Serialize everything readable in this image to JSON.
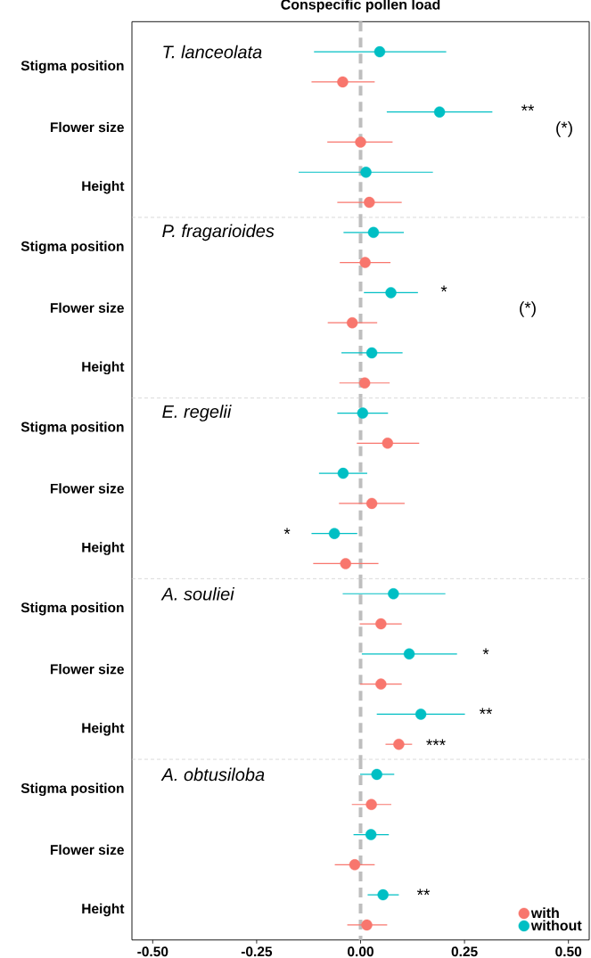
{
  "chart_data": [
    {
      "type": "scatter",
      "orientation": "horizontal",
      "title": "Conspecific pollen load",
      "categories": [
        "Stigma position",
        "Flower size",
        "Height"
      ],
      "series": [
        {
          "color": "#f8766d",
          "values": [
            -0.043,
            0.0,
            0.021
          ],
          "errors": [
            [
              -0.118,
              0.034
            ],
            [
              -0.08,
              0.077
            ],
            [
              -0.056,
              0.099
            ]
          ]
        },
        {
          "color": "#00bfc4",
          "values": [
            0.046,
            0.19,
            0.013
          ],
          "errors": [
            [
              -0.112,
              0.206
            ],
            [
              0.063,
              0.317
            ],
            [
              -0.149,
              0.174
            ]
          ]
        }
      ],
      "annotations": [
        "T. lanceolata",
        "**",
        "(*)"
      ],
      "xlim": [
        -0.55,
        0.55
      ],
      "ref_lines": [
        {
          "axis": "x",
          "value": 0,
          "color": "#bebebe",
          "line_style": "dashed"
        }
      ],
      "marker": "circle",
      "tick_labels": "y"
    },
    {
      "type": "scatter",
      "orientation": "horizontal",
      "categories": [
        "Stigma position",
        "Flower size",
        "Height"
      ],
      "series": [
        {
          "color": "#f8766d",
          "values": [
            0.011,
            -0.02,
            0.01
          ],
          "errors": [
            [
              -0.05,
              0.072
            ],
            [
              -0.079,
              0.04
            ],
            [
              -0.051,
              0.07
            ]
          ]
        },
        {
          "color": "#00bfc4",
          "values": [
            0.031,
            0.073,
            0.027
          ],
          "errors": [
            [
              -0.041,
              0.104
            ],
            [
              0.008,
              0.138
            ],
            [
              -0.046,
              0.101
            ]
          ]
        }
      ],
      "annotations": [
        "P. fragarioides",
        "*",
        "(*)"
      ],
      "xlim": [
        -0.55,
        0.55
      ],
      "ref_lines": [
        {
          "axis": "x",
          "value": 0,
          "color": "#bebebe",
          "line_style": "dashed"
        }
      ],
      "marker": "circle",
      "tick_labels": "y"
    },
    {
      "type": "scatter",
      "orientation": "horizontal",
      "categories": [
        "Stigma position",
        "Flower size",
        "Height"
      ],
      "series": [
        {
          "color": "#f8766d",
          "values": [
            0.065,
            0.027,
            -0.036
          ],
          "errors": [
            [
              -0.009,
              0.141
            ],
            [
              -0.052,
              0.106
            ],
            [
              -0.114,
              0.043
            ]
          ]
        },
        {
          "color": "#00bfc4",
          "values": [
            0.005,
            -0.042,
            -0.063
          ],
          "errors": [
            [
              -0.056,
              0.066
            ],
            [
              -0.1,
              0.016
            ],
            [
              -0.118,
              -0.008
            ]
          ]
        }
      ],
      "annotations": [
        "E. regelii",
        "*"
      ],
      "xlim": [
        -0.55,
        0.55
      ],
      "ref_lines": [
        {
          "axis": "x",
          "value": 0,
          "color": "#bebebe",
          "line_style": "dashed"
        }
      ],
      "marker": "circle",
      "tick_labels": "y"
    },
    {
      "type": "scatter",
      "orientation": "horizontal",
      "categories": [
        "Stigma position",
        "Flower size",
        "Height"
      ],
      "series": [
        {
          "color": "#f8766d",
          "values": [
            0.049,
            0.049,
            0.092
          ],
          "errors": [
            [
              -0.002,
              0.099
            ],
            [
              -0.001,
              0.099
            ],
            [
              0.06,
              0.124
            ]
          ]
        },
        {
          "color": "#00bfc4",
          "values": [
            0.079,
            0.117,
            0.145
          ],
          "errors": [
            [
              -0.043,
              0.204
            ],
            [
              0.003,
              0.232
            ],
            [
              0.039,
              0.251
            ]
          ]
        }
      ],
      "annotations": [
        "A. souliei",
        "*",
        "**",
        "***"
      ],
      "xlim": [
        -0.55,
        0.55
      ],
      "ref_lines": [
        {
          "axis": "x",
          "value": 0,
          "color": "#bebebe",
          "line_style": "dashed"
        }
      ],
      "marker": "circle",
      "tick_labels": "y"
    },
    {
      "type": "scatter",
      "orientation": "horizontal",
      "categories": [
        "Stigma position",
        "Flower size",
        "Height"
      ],
      "series": [
        {
          "name": "with",
          "color": "#f8766d",
          "values": [
            0.026,
            -0.014,
            0.015
          ],
          "errors": [
            [
              -0.021,
              0.074
            ],
            [
              -0.062,
              0.034
            ],
            [
              -0.032,
              0.064
            ]
          ]
        },
        {
          "name": "without",
          "color": "#00bfc4",
          "values": [
            0.039,
            0.025,
            0.054
          ],
          "errors": [
            [
              -0.001,
              0.081
            ],
            [
              -0.017,
              0.068
            ],
            [
              0.017,
              0.092
            ]
          ]
        }
      ],
      "annotations": [
        "A. obtusiloba",
        "**"
      ],
      "xlim": [
        -0.55,
        0.55
      ],
      "xticks": [
        {
          "value": -0.5,
          "label": "-0.50"
        },
        {
          "value": -0.25,
          "label": "-0.25"
        },
        {
          "value": 0,
          "label": "0.00"
        },
        {
          "value": 0.25,
          "label": "0.25"
        },
        {
          "value": 0.5,
          "label": "0.50"
        }
      ],
      "ref_lines": [
        {
          "axis": "x",
          "value": 0,
          "color": "#bebebe",
          "line_style": "dashed"
        }
      ],
      "marker": "circle",
      "legend": "bottom right"
    }
  ]
}
